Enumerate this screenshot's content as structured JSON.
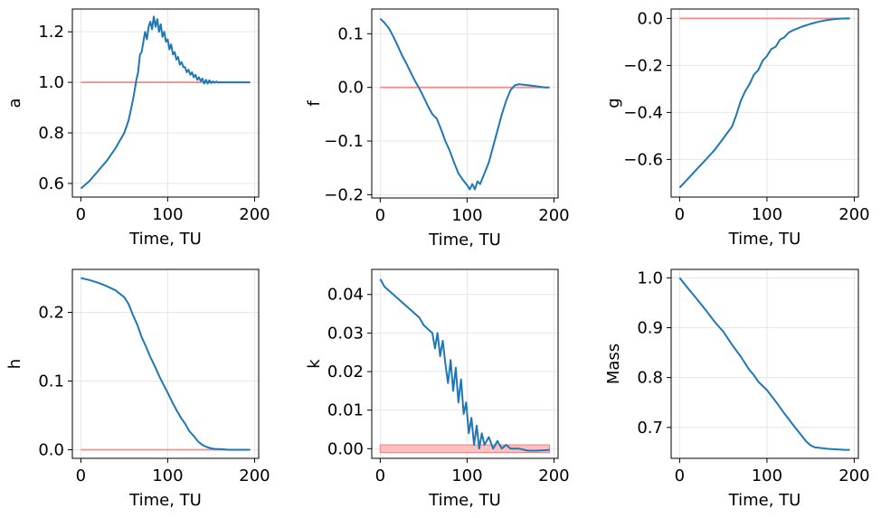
{
  "chart_data": [
    {
      "type": "line",
      "ylabel": "a",
      "xlabel": "Time, TU",
      "xlim": [
        -9.75,
        204.75
      ],
      "ylim": [
        0.546,
        1.29
      ],
      "xticks": [
        0,
        100,
        200
      ],
      "xtick_labels": [
        "0",
        "100",
        "200"
      ],
      "yticks": [
        0.6,
        0.8,
        1.0,
        1.2
      ],
      "ytick_labels": [
        "0.6",
        "0.8",
        "1.0",
        "1.2"
      ],
      "grid": true,
      "target": {
        "kind": "line",
        "value": 1.0,
        "color": "#f28e8e"
      },
      "series": [
        {
          "color": "#1f77b4",
          "x": [
            0,
            10,
            20,
            30,
            40,
            50,
            55,
            60,
            62,
            64,
            66,
            68,
            70,
            72,
            74,
            76,
            78,
            80,
            82,
            84,
            86,
            88,
            90,
            92,
            94,
            96,
            98,
            100,
            102,
            104,
            106,
            108,
            110,
            112,
            114,
            116,
            118,
            120,
            122,
            124,
            126,
            128,
            130,
            132,
            134,
            136,
            138,
            140,
            142,
            144,
            146,
            148,
            150,
            152,
            154,
            156,
            158,
            160,
            165,
            170,
            175,
            180,
            185,
            190,
            195
          ],
          "y": [
            0.58,
            0.61,
            0.65,
            0.69,
            0.74,
            0.8,
            0.85,
            0.93,
            0.97,
            1.01,
            1.04,
            1.11,
            1.12,
            1.16,
            1.2,
            1.17,
            1.22,
            1.24,
            1.21,
            1.26,
            1.22,
            1.25,
            1.2,
            1.23,
            1.18,
            1.2,
            1.16,
            1.17,
            1.13,
            1.15,
            1.11,
            1.12,
            1.09,
            1.1,
            1.07,
            1.08,
            1.06,
            1.06,
            1.04,
            1.05,
            1.03,
            1.04,
            1.02,
            1.03,
            1.01,
            1.02,
            1.005,
            1.015,
            0.995,
            1.01,
            0.995,
            1.008,
            0.997,
            1.004,
            0.998,
            1.003,
            0.999,
            1.0,
            1.0,
            1.0,
            1.0,
            1.0,
            1.0,
            1.0,
            1.0
          ]
        }
      ]
    },
    {
      "type": "line",
      "ylabel": "f",
      "xlabel": "Time, TU",
      "xlim": [
        -9.75,
        204.75
      ],
      "ylim": [
        -0.206,
        0.146
      ],
      "xticks": [
        0,
        100,
        200
      ],
      "xtick_labels": [
        "0",
        "100",
        "200"
      ],
      "yticks": [
        -0.2,
        -0.1,
        0.0,
        0.1
      ],
      "ytick_labels": [
        "−0.2",
        "−0.1",
        "0.0",
        "0.1"
      ],
      "grid": true,
      "target": {
        "kind": "line",
        "value": 0.0,
        "color": "#f28e8e"
      },
      "series": [
        {
          "color": "#1f77b4",
          "x": [
            0,
            5,
            10,
            15,
            20,
            25,
            30,
            35,
            40,
            45,
            50,
            55,
            60,
            65,
            70,
            75,
            80,
            85,
            90,
            95,
            100,
            103,
            106,
            109,
            112,
            115,
            120,
            125,
            130,
            135,
            140,
            145,
            150,
            155,
            160,
            165,
            170,
            175,
            180,
            185,
            190,
            195
          ],
          "y": [
            0.128,
            0.12,
            0.11,
            0.095,
            0.078,
            0.06,
            0.045,
            0.028,
            0.012,
            -0.002,
            -0.018,
            -0.035,
            -0.05,
            -0.058,
            -0.078,
            -0.1,
            -0.118,
            -0.14,
            -0.16,
            -0.172,
            -0.182,
            -0.19,
            -0.18,
            -0.19,
            -0.175,
            -0.18,
            -0.16,
            -0.14,
            -0.11,
            -0.08,
            -0.05,
            -0.025,
            -0.005,
            0.004,
            0.006,
            0.005,
            0.004,
            0.003,
            0.002,
            0.001,
            0.0,
            0.0
          ]
        }
      ]
    },
    {
      "type": "line",
      "ylabel": "g",
      "xlabel": "Time, TU",
      "xlim": [
        -9.75,
        204.75
      ],
      "ylim": [
        -0.76,
        0.04
      ],
      "xticks": [
        0,
        100,
        200
      ],
      "xtick_labels": [
        "0",
        "100",
        "200"
      ],
      "yticks": [
        -0.6,
        -0.4,
        -0.2,
        0.0
      ],
      "ytick_labels": [
        "−0.6",
        "−0.4",
        "−0.2",
        "0.0"
      ],
      "grid": true,
      "target": {
        "kind": "line",
        "value": 0.0,
        "color": "#f28e8e"
      },
      "series": [
        {
          "color": "#1f77b4",
          "x": [
            0,
            10,
            20,
            30,
            40,
            50,
            60,
            65,
            70,
            75,
            80,
            85,
            90,
            95,
            100,
            105,
            110,
            115,
            120,
            125,
            130,
            140,
            150,
            160,
            170,
            180,
            190,
            195
          ],
          "y": [
            -0.72,
            -0.68,
            -0.64,
            -0.6,
            -0.56,
            -0.51,
            -0.46,
            -0.41,
            -0.35,
            -0.31,
            -0.28,
            -0.24,
            -0.22,
            -0.18,
            -0.16,
            -0.13,
            -0.12,
            -0.09,
            -0.08,
            -0.06,
            -0.05,
            -0.035,
            -0.023,
            -0.013,
            -0.006,
            -0.002,
            0.0,
            0.0
          ]
        }
      ]
    },
    {
      "type": "line",
      "ylabel": "h",
      "xlabel": "Time, TU",
      "xlim": [
        -9.75,
        204.75
      ],
      "ylim": [
        -0.0125,
        0.2625
      ],
      "xticks": [
        0,
        100,
        200
      ],
      "xtick_labels": [
        "0",
        "100",
        "200"
      ],
      "yticks": [
        0.0,
        0.1,
        0.2
      ],
      "ytick_labels": [
        "0.0",
        "0.1",
        "0.2"
      ],
      "grid": true,
      "target": {
        "kind": "line",
        "value": 0.0,
        "color": "#f28e8e"
      },
      "series": [
        {
          "color": "#1f77b4",
          "x": [
            0,
            10,
            20,
            30,
            40,
            50,
            55,
            60,
            65,
            70,
            75,
            80,
            85,
            90,
            95,
            100,
            105,
            110,
            115,
            120,
            125,
            130,
            135,
            140,
            145,
            150,
            155,
            160,
            170,
            180,
            195
          ],
          "y": [
            0.25,
            0.247,
            0.243,
            0.238,
            0.232,
            0.222,
            0.212,
            0.196,
            0.182,
            0.164,
            0.15,
            0.135,
            0.122,
            0.108,
            0.095,
            0.083,
            0.07,
            0.058,
            0.047,
            0.038,
            0.027,
            0.02,
            0.012,
            0.007,
            0.004,
            0.002,
            0.001,
            0.001,
            0.0,
            0.0,
            0.0
          ]
        }
      ]
    },
    {
      "type": "line",
      "ylabel": "k",
      "xlabel": "Time, TU",
      "xlim": [
        -9.75,
        204.75
      ],
      "ylim": [
        -0.0025,
        0.0465
      ],
      "xticks": [
        0,
        100,
        200
      ],
      "xtick_labels": [
        "0",
        "100",
        "200"
      ],
      "yticks": [
        0.0,
        0.01,
        0.02,
        0.03,
        0.04
      ],
      "ytick_labels": [
        "0.00",
        "0.01",
        "0.02",
        "0.03",
        "0.04"
      ],
      "grid": true,
      "target": {
        "kind": "band",
        "low": -0.001,
        "high": 0.001,
        "color": "#ffc0c0"
      },
      "series": [
        {
          "color": "#1f77b4",
          "x": [
            0,
            5,
            10,
            15,
            20,
            25,
            30,
            35,
            40,
            45,
            50,
            55,
            60,
            63,
            66,
            69,
            72,
            75,
            78,
            81,
            84,
            87,
            90,
            93,
            96,
            99,
            102,
            105,
            108,
            111,
            114,
            117,
            120,
            125,
            130,
            135,
            140,
            145,
            150,
            155,
            160,
            170,
            180,
            190,
            195
          ],
          "y": [
            0.044,
            0.042,
            0.041,
            0.04,
            0.039,
            0.038,
            0.037,
            0.036,
            0.035,
            0.034,
            0.032,
            0.031,
            0.03,
            0.026,
            0.03,
            0.024,
            0.028,
            0.022,
            0.017,
            0.023,
            0.015,
            0.021,
            0.012,
            0.018,
            0.009,
            0.012,
            0.004,
            0.008,
            0.001,
            0.006,
            0.0,
            0.004,
            0.001,
            0.003,
            0.0,
            0.002,
            0.0,
            0.001,
            0.0,
            0.0,
            0.0,
            -0.0005,
            -0.0005,
            -0.0004,
            -0.0003
          ]
        }
      ]
    },
    {
      "type": "line",
      "ylabel": "Mass",
      "xlabel": "Time, TU",
      "xlim": [
        -9.75,
        204.75
      ],
      "ylim": [
        0.638,
        1.017
      ],
      "xticks": [
        0,
        100,
        200
      ],
      "xtick_labels": [
        "0",
        "100",
        "200"
      ],
      "yticks": [
        0.7,
        0.8,
        0.9,
        1.0
      ],
      "ytick_labels": [
        "0.7",
        "0.8",
        "0.9",
        "1.0"
      ],
      "grid": true,
      "target": null,
      "series": [
        {
          "color": "#1f77b4",
          "x": [
            0,
            10,
            20,
            30,
            40,
            50,
            60,
            70,
            80,
            85,
            90,
            100,
            110,
            120,
            130,
            140,
            145,
            150,
            155,
            160,
            170,
            180,
            190,
            195
          ],
          "y": [
            1.0,
            0.978,
            0.957,
            0.935,
            0.912,
            0.892,
            0.866,
            0.842,
            0.815,
            0.805,
            0.792,
            0.775,
            0.752,
            0.728,
            0.705,
            0.683,
            0.672,
            0.664,
            0.66,
            0.659,
            0.657,
            0.656,
            0.655,
            0.655
          ]
        }
      ]
    }
  ]
}
